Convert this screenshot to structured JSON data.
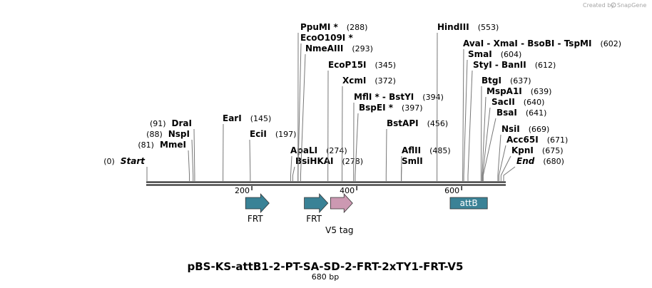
{
  "credit": {
    "prefix": "Created by",
    "brand": "SnapGene"
  },
  "map": {
    "name": "pBS-KS-attB1-2-PT-SA-SD-2-FRT-2xTY1-FRT-V5",
    "length_label": "680 bp",
    "length_bp": 680,
    "ticks": [
      {
        "bp": 200,
        "label": "200"
      },
      {
        "bp": 400,
        "label": "400"
      },
      {
        "bp": 600,
        "label": "600"
      }
    ]
  },
  "sites": [
    {
      "name": "Start",
      "pos": "(0)",
      "bp": 0,
      "italic": true
    },
    {
      "name": "MmeI",
      "pos": "(81)",
      "bp": 81
    },
    {
      "name": "NspI",
      "pos": "(88)",
      "bp": 88
    },
    {
      "name": "DraI",
      "pos": "(91)",
      "bp": 91
    },
    {
      "name": "EarI",
      "pos": "(145)",
      "bp": 145
    },
    {
      "name": "EciI",
      "pos": "(197)",
      "bp": 197
    },
    {
      "name": "ApaLI",
      "pos": "(274)",
      "bp": 274
    },
    {
      "name": "BsiHKAI",
      "pos": "(278)",
      "bp": 278
    },
    {
      "name": "PpuMI *",
      "pos": "(288)",
      "bp": 288
    },
    {
      "name": "EcoO109I *",
      "pos": "",
      "bp": 288
    },
    {
      "name": "NmeAIII",
      "pos": "(293)",
      "bp": 293
    },
    {
      "name": "EcoP15I",
      "pos": "(345)",
      "bp": 345
    },
    {
      "name": "XcmI",
      "pos": "(372)",
      "bp": 372
    },
    {
      "name": "MflI * - BstYI",
      "pos": "(394)",
      "bp": 394
    },
    {
      "name": "BspEI *",
      "pos": "(397)",
      "bp": 397
    },
    {
      "name": "BstAPI",
      "pos": "(456)",
      "bp": 456
    },
    {
      "name": "AflII",
      "pos": "(485)",
      "bp": 485
    },
    {
      "name": "SmlI",
      "pos": "",
      "bp": 485
    },
    {
      "name": "HindIII",
      "pos": "(553)",
      "bp": 553
    },
    {
      "name": "AvaI - XmaI - BsoBI - TspMI",
      "pos": "(602)",
      "bp": 602
    },
    {
      "name": "SmaI",
      "pos": "(604)",
      "bp": 604
    },
    {
      "name": "StyI - BanII",
      "pos": "(612)",
      "bp": 612
    },
    {
      "name": "BtgI",
      "pos": "(637)",
      "bp": 637
    },
    {
      "name": "MspA1I",
      "pos": "(639)",
      "bp": 639
    },
    {
      "name": "SacII",
      "pos": "(640)",
      "bp": 640
    },
    {
      "name": "BsaI",
      "pos": "(641)",
      "bp": 641
    },
    {
      "name": "NsiI",
      "pos": "(669)",
      "bp": 669
    },
    {
      "name": "Acc65I",
      "pos": "(671)",
      "bp": 671
    },
    {
      "name": "KpnI",
      "pos": "(675)",
      "bp": 675
    },
    {
      "name": "End",
      "pos": "(680)",
      "bp": 680,
      "italic": true
    }
  ],
  "features": [
    {
      "name": "FRT",
      "type": "arrow",
      "start_bp": 188,
      "end_bp": 233,
      "color": "#3a8296"
    },
    {
      "name": "FRT",
      "type": "arrow",
      "start_bp": 300,
      "end_bp": 345,
      "color": "#3a8296"
    },
    {
      "name": "V5 tag",
      "type": "arrow",
      "start_bp": 350,
      "end_bp": 392,
      "color": "#cc99b2"
    },
    {
      "name": "attB",
      "type": "box",
      "start_bp": 578,
      "end_bp": 649,
      "color": "#3a8296"
    }
  ]
}
